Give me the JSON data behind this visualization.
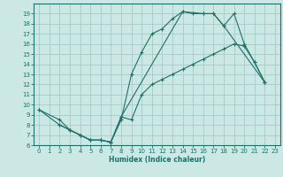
{
  "xlabel": "Humidex (Indice chaleur)",
  "bg_color": "#cce8e4",
  "grid_color": "#aacfca",
  "line_color": "#1e7068",
  "xlim": [
    -0.5,
    23.5
  ],
  "ylim": [
    6,
    20
  ],
  "yticks": [
    6,
    7,
    8,
    9,
    10,
    11,
    12,
    13,
    14,
    15,
    16,
    17,
    18,
    19
  ],
  "xticks": [
    0,
    1,
    2,
    3,
    4,
    5,
    6,
    7,
    8,
    9,
    10,
    11,
    12,
    13,
    14,
    15,
    16,
    17,
    18,
    19,
    20,
    21,
    22,
    23
  ],
  "line1_x": [
    0,
    2,
    3,
    4,
    5,
    6,
    7,
    8,
    9,
    10,
    11,
    12,
    13,
    14,
    15,
    16,
    17,
    18,
    22
  ],
  "line1_y": [
    9.5,
    8.5,
    7.5,
    7.0,
    6.5,
    6.5,
    6.3,
    8.5,
    13.0,
    15.2,
    17.0,
    17.5,
    18.5,
    19.2,
    19.0,
    19.0,
    19.0,
    17.8,
    12.2
  ],
  "line2_x": [
    0,
    2,
    3,
    4,
    5,
    6,
    7,
    8,
    9,
    10,
    11,
    12,
    13,
    14,
    15,
    16,
    17,
    18,
    19,
    20,
    21,
    22
  ],
  "line2_y": [
    9.5,
    8.0,
    7.5,
    7.0,
    6.5,
    6.5,
    6.3,
    8.8,
    8.5,
    11.0,
    12.0,
    12.5,
    13.0,
    13.5,
    14.0,
    14.5,
    15.0,
    15.5,
    16.0,
    15.8,
    14.2,
    12.2
  ],
  "line3_x": [
    2,
    3,
    4,
    5,
    6,
    7,
    8,
    14,
    16,
    17,
    18,
    19,
    20,
    21,
    22
  ],
  "line3_y": [
    8.0,
    7.5,
    7.0,
    6.5,
    6.5,
    6.3,
    8.8,
    19.2,
    19.0,
    19.0,
    17.8,
    19.0,
    16.0,
    14.2,
    12.2
  ]
}
